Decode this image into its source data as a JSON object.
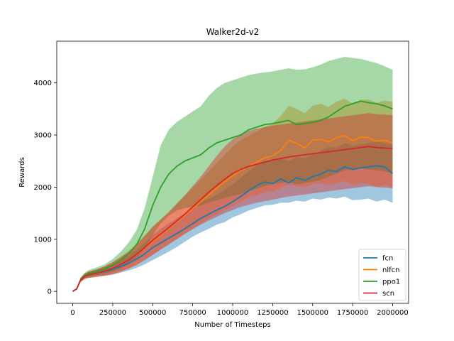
{
  "chart_data": {
    "type": "line",
    "title": "Walker2d-v2",
    "xlabel": "Number of Timesteps",
    "ylabel": "Rewards",
    "xlim": [
      -100000,
      2100000
    ],
    "ylim": [
      -230,
      4800
    ],
    "xticks": [
      0,
      250000,
      500000,
      750000,
      1000000,
      1250000,
      1500000,
      1750000,
      2000000
    ],
    "xtick_labels": [
      "0",
      "250000",
      "500000",
      "750000",
      "1000000",
      "1250000",
      "1500000",
      "1750000",
      "2000000"
    ],
    "yticks": [
      0,
      1000,
      2000,
      3000,
      4000
    ],
    "ytick_labels": [
      "0",
      "1000",
      "2000",
      "3000",
      "4000"
    ],
    "grid": false,
    "legend_position": "lower-right",
    "x": [
      0,
      25000,
      50000,
      75000,
      100000,
      150000,
      200000,
      250000,
      300000,
      350000,
      400000,
      450000,
      500000,
      550000,
      600000,
      650000,
      700000,
      750000,
      800000,
      850000,
      900000,
      950000,
      1000000,
      1050000,
      1100000,
      1150000,
      1200000,
      1250000,
      1300000,
      1350000,
      1400000,
      1450000,
      1500000,
      1550000,
      1600000,
      1650000,
      1700000,
      1750000,
      1800000,
      1850000,
      1900000,
      1950000,
      2000000
    ],
    "series": [
      {
        "name": "fcn",
        "color": "#1f77b4",
        "values": [
          0,
          50,
          220,
          290,
          320,
          350,
          380,
          420,
          480,
          540,
          620,
          720,
          840,
          930,
          1020,
          1110,
          1200,
          1300,
          1400,
          1480,
          1560,
          1630,
          1720,
          1820,
          1930,
          2030,
          2100,
          2070,
          2160,
          2080,
          2180,
          2130,
          2200,
          2250,
          2320,
          2300,
          2390,
          2340,
          2370,
          2390,
          2410,
          2390,
          2260
        ],
        "lower": [
          0,
          30,
          180,
          240,
          260,
          280,
          300,
          320,
          360,
          400,
          450,
          520,
          600,
          680,
          760,
          850,
          950,
          1050,
          1130,
          1200,
          1280,
          1330,
          1420,
          1480,
          1550,
          1600,
          1650,
          1660,
          1700,
          1700,
          1740,
          1720,
          1780,
          1760,
          1800,
          1780,
          1820,
          1750,
          1760,
          1780,
          1720,
          1760,
          1700
        ],
        "upper": [
          0,
          70,
          260,
          340,
          380,
          420,
          460,
          520,
          600,
          680,
          800,
          930,
          1080,
          1200,
          1300,
          1400,
          1500,
          1600,
          1700,
          1780,
          1850,
          1950,
          2050,
          2180,
          2300,
          2420,
          2500,
          2500,
          2560,
          2500,
          2580,
          2560,
          2620,
          2700,
          2780,
          2760,
          2850,
          2800,
          2820,
          2850,
          2880,
          2840,
          2820
        ]
      },
      {
        "name": "nlfcn",
        "color": "#ff7f0e",
        "values": [
          0,
          50,
          220,
          290,
          320,
          350,
          390,
          440,
          520,
          600,
          700,
          830,
          960,
          1080,
          1200,
          1330,
          1460,
          1590,
          1720,
          1850,
          1980,
          2100,
          2220,
          2320,
          2400,
          2480,
          2560,
          2600,
          2700,
          2900,
          2840,
          2750,
          2900,
          2920,
          2870,
          2950,
          2990,
          2890,
          2960,
          2950,
          2880,
          2900,
          2850
        ],
        "lower": [
          0,
          30,
          180,
          240,
          260,
          280,
          300,
          330,
          380,
          430,
          500,
          600,
          700,
          800,
          900,
          1000,
          1100,
          1200,
          1300,
          1400,
          1480,
          1560,
          1640,
          1720,
          1800,
          1840,
          1900,
          1920,
          1980,
          2050,
          2020,
          2000,
          2060,
          2080,
          2040,
          2080,
          2120,
          2040,
          2080,
          2060,
          2000,
          2040,
          1980
        ],
        "upper": [
          0,
          70,
          260,
          340,
          380,
          420,
          480,
          560,
          660,
          780,
          920,
          1080,
          1240,
          1380,
          1520,
          1680,
          1840,
          1990,
          2140,
          2300,
          2460,
          2620,
          2780,
          2900,
          2980,
          3060,
          3160,
          3220,
          3360,
          3560,
          3500,
          3420,
          3560,
          3600,
          3540,
          3640,
          3700,
          3600,
          3680,
          3680,
          3620,
          3660,
          3640
        ]
      },
      {
        "name": "ppo1",
        "color": "#2ca02c",
        "values": [
          0,
          50,
          230,
          300,
          340,
          380,
          430,
          500,
          600,
          720,
          900,
          1200,
          1650,
          2000,
          2250,
          2400,
          2500,
          2560,
          2620,
          2750,
          2850,
          2900,
          2950,
          3000,
          3100,
          3150,
          3200,
          3220,
          3250,
          3280,
          3200,
          3220,
          3240,
          3280,
          3350,
          3450,
          3550,
          3600,
          3650,
          3620,
          3600,
          3560,
          3500
        ],
        "lower": [
          0,
          30,
          190,
          250,
          280,
          310,
          340,
          380,
          440,
          520,
          640,
          820,
          1080,
          1300,
          1450,
          1550,
          1600,
          1620,
          1650,
          1700,
          1750,
          1800,
          1830,
          1870,
          1920,
          1970,
          2020,
          2050,
          2080,
          2100,
          2050,
          2080,
          2100,
          2140,
          2200,
          2260,
          2320,
          2340,
          2360,
          2340,
          2320,
          2300,
          2260
        ],
        "upper": [
          0,
          70,
          270,
          360,
          410,
          460,
          520,
          620,
          760,
          940,
          1180,
          1600,
          2200,
          2800,
          3100,
          3250,
          3350,
          3450,
          3550,
          3750,
          3900,
          4000,
          4050,
          4100,
          4150,
          4180,
          4200,
          4220,
          4250,
          4280,
          4250,
          4260,
          4300,
          4350,
          4420,
          4460,
          4500,
          4480,
          4460,
          4420,
          4380,
          4320,
          4250
        ]
      },
      {
        "name": "scn",
        "color": "#d62728",
        "values": [
          0,
          50,
          220,
          290,
          320,
          350,
          390,
          440,
          520,
          600,
          710,
          840,
          980,
          1100,
          1220,
          1350,
          1480,
          1620,
          1760,
          1900,
          2030,
          2150,
          2260,
          2340,
          2400,
          2440,
          2480,
          2520,
          2550,
          2580,
          2600,
          2620,
          2640,
          2660,
          2680,
          2700,
          2720,
          2740,
          2760,
          2780,
          2760,
          2750,
          2740
        ],
        "lower": [
          0,
          30,
          180,
          240,
          260,
          280,
          300,
          330,
          380,
          440,
          510,
          600,
          700,
          800,
          900,
          1000,
          1100,
          1190,
          1280,
          1360,
          1430,
          1500,
          1560,
          1620,
          1660,
          1700,
          1730,
          1760,
          1790,
          1820,
          1840,
          1860,
          1880,
          1900,
          1920,
          1940,
          1960,
          1980,
          2000,
          2020,
          2000,
          1990,
          1980
        ],
        "upper": [
          0,
          70,
          260,
          340,
          380,
          420,
          480,
          560,
          660,
          760,
          900,
          1060,
          1240,
          1380,
          1520,
          1680,
          1840,
          2020,
          2200,
          2400,
          2600,
          2780,
          2920,
          3000,
          3080,
          3120,
          3150,
          3180,
          3200,
          3220,
          3240,
          3260,
          3280,
          3300,
          3320,
          3340,
          3360,
          3380,
          3400,
          3420,
          3400,
          3390,
          3380
        ]
      }
    ]
  }
}
